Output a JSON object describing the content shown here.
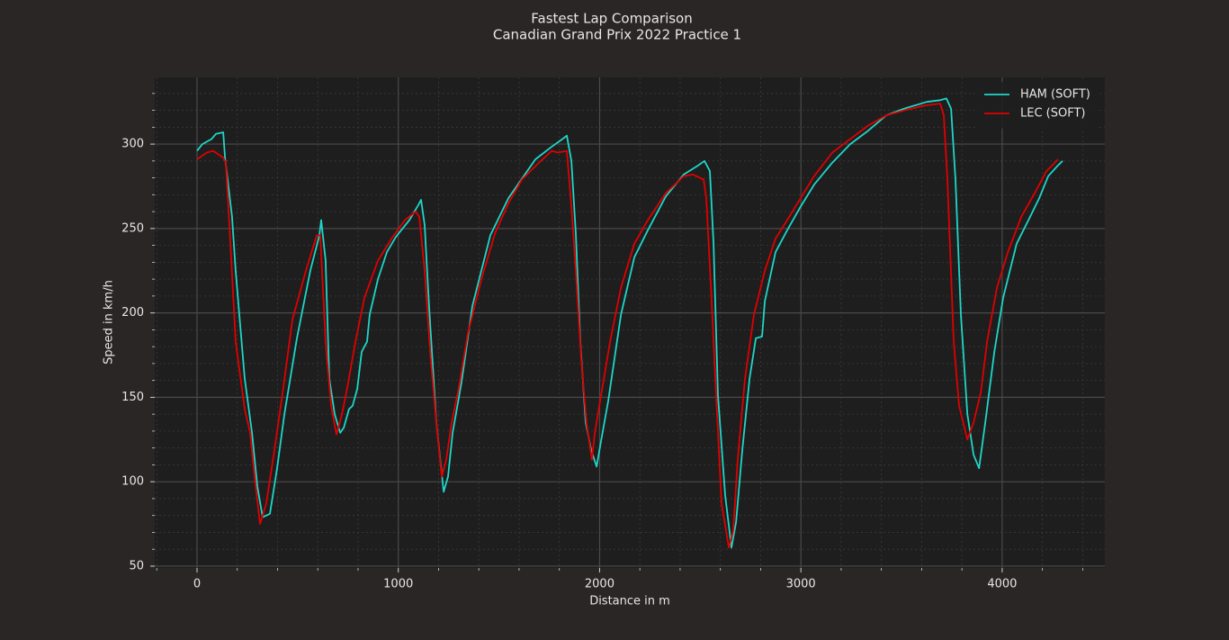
{
  "chart_data": {
    "type": "line",
    "title": "Fastest Lap Comparison",
    "subtitle": "Canadian Grand Prix 2022 Practice 1",
    "x_label": "Distance in m",
    "y_label": "Speed in km/h",
    "xlim": [
      -210,
      4510
    ],
    "ylim": [
      48.9,
      339.5
    ],
    "xticks": [
      0,
      1000,
      2000,
      3000,
      4000
    ],
    "yticks": [
      50,
      100,
      150,
      200,
      250,
      300
    ],
    "xminorticks": [
      -200,
      200,
      400,
      600,
      800,
      1200,
      1400,
      1600,
      1800,
      2200,
      2400,
      2600,
      2800,
      3200,
      3400,
      3600,
      3800,
      4200,
      4400
    ],
    "yminorticks": [
      60,
      70,
      80,
      90,
      110,
      120,
      130,
      140,
      160,
      170,
      180,
      190,
      210,
      220,
      230,
      240,
      260,
      270,
      280,
      290,
      310,
      320,
      330
    ],
    "grid": true,
    "legend": "upper right",
    "series": [
      {
        "name": "HAM (SOFT)",
        "color": "#1fd6c8",
        "x": [
          0,
          27,
          72,
          94,
          130,
          139,
          174,
          192,
          237,
          273,
          300,
          326,
          362,
          398,
          434,
          496,
          563,
          608,
          617,
          639,
          657,
          684,
          711,
          729,
          755,
          773,
          796,
          818,
          845,
          858,
          899,
          943,
          988,
          1055,
          1100,
          1113,
          1131,
          1153,
          1189,
          1225,
          1247,
          1270,
          1314,
          1368,
          1457,
          1547,
          1623,
          1681,
          1757,
          1815,
          1837,
          1860,
          1882,
          1904,
          1931,
          1958,
          1985,
          2007,
          2043,
          2106,
          2173,
          2240,
          2329,
          2418,
          2485,
          2521,
          2548,
          2566,
          2588,
          2624,
          2655,
          2678,
          2709,
          2745,
          2776,
          2807,
          2821,
          2874,
          2932,
          2999,
          3066,
          3156,
          3245,
          3335,
          3424,
          3513,
          3625,
          3692,
          3723,
          3746,
          3768,
          3795,
          3827,
          3858,
          3885,
          3916,
          3961,
          4005,
          4072,
          4139,
          4184,
          4229,
          4274,
          4300
        ],
        "values": [
          296,
          300,
          303,
          306,
          307,
          292,
          257,
          225,
          161,
          129,
          97,
          79,
          81,
          108,
          140,
          185,
          225,
          246,
          255,
          231,
          161,
          140,
          129,
          132,
          143,
          145,
          155,
          177,
          183,
          199,
          220,
          236,
          245,
          255,
          264,
          267,
          252,
          204,
          135,
          94,
          103,
          129,
          159,
          204,
          246,
          268,
          281,
          291,
          298,
          303,
          305,
          290,
          247,
          183,
          135,
          119,
          109,
          124,
          148,
          199,
          233,
          249,
          269,
          282,
          287,
          290,
          284,
          241,
          151,
          92,
          61,
          76,
          119,
          161,
          185,
          186,
          207,
          236,
          249,
          263,
          276,
          289,
          300,
          308,
          317,
          321,
          325,
          326,
          327,
          321,
          279,
          199,
          140,
          116,
          108,
          135,
          177,
          209,
          241,
          257,
          268,
          281,
          287,
          290
        ]
      },
      {
        "name": "LEC (SOFT)",
        "color": "#e00000",
        "x": [
          0,
          49,
          80,
          130,
          143,
          161,
          192,
          237,
          264,
          286,
          313,
          344,
          385,
          429,
          474,
          541,
          595,
          612,
          639,
          666,
          693,
          720,
          747,
          787,
          832,
          899,
          966,
          1033,
          1086,
          1104,
          1131,
          1158,
          1189,
          1216,
          1238,
          1265,
          1301,
          1346,
          1413,
          1480,
          1547,
          1614,
          1681,
          1762,
          1793,
          1837,
          1860,
          1882,
          1909,
          1935,
          1962,
          1976,
          2007,
          2052,
          2106,
          2173,
          2240,
          2329,
          2418,
          2463,
          2517,
          2530,
          2553,
          2579,
          2606,
          2642,
          2664,
          2686,
          2722,
          2767,
          2821,
          2874,
          2932,
          2999,
          3066,
          3156,
          3245,
          3335,
          3424,
          3513,
          3625,
          3692,
          3710,
          3728,
          3759,
          3786,
          3827,
          3858,
          3894,
          3925,
          3974,
          4028,
          4095,
          4162,
          4220,
          4278
        ],
        "values": [
          291,
          295,
          296,
          292,
          289,
          252,
          183,
          143,
          129,
          103,
          75,
          87,
          119,
          156,
          196,
          225,
          246,
          246,
          183,
          145,
          128,
          140,
          156,
          183,
          209,
          231,
          244,
          255,
          260,
          257,
          225,
          177,
          135,
          103,
          113,
          135,
          156,
          188,
          220,
          247,
          265,
          279,
          287,
          296,
          295,
          296,
          263,
          225,
          172,
          135,
          113,
          129,
          151,
          183,
          215,
          241,
          255,
          271,
          281,
          282,
          279,
          268,
          215,
          151,
          87,
          61,
          71,
          113,
          161,
          199,
          225,
          244,
          255,
          268,
          281,
          295,
          303,
          311,
          317,
          320,
          323,
          324,
          317,
          279,
          183,
          145,
          125,
          135,
          153,
          183,
          215,
          236,
          257,
          271,
          284,
          291
        ]
      }
    ]
  }
}
